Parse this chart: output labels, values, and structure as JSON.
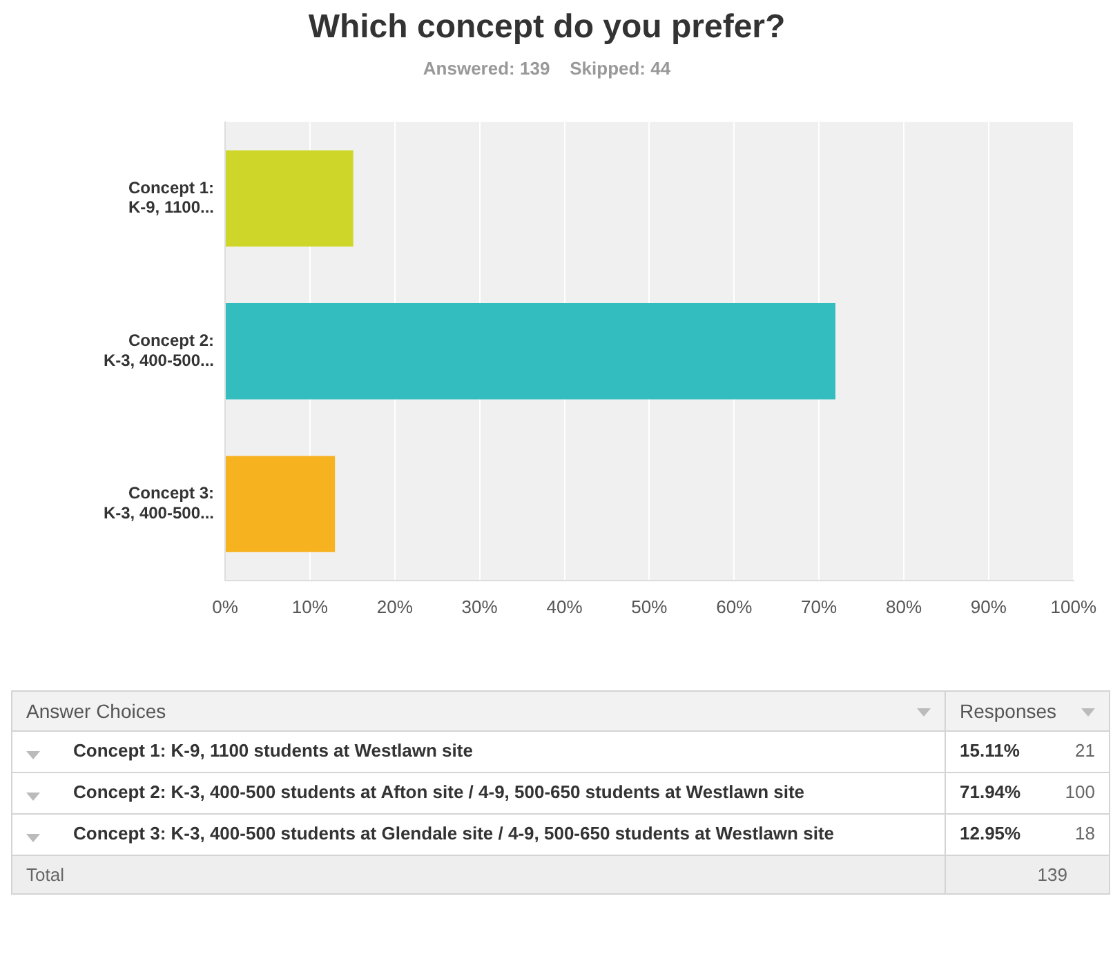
{
  "chart_data": {
    "type": "bar",
    "orientation": "horizontal",
    "title": "Which concept do you prefer?",
    "subtitle": "Answered: 139    Skipped: 44",
    "categories": [
      "Concept 1: K-9, 1100...",
      "Concept 2: K-3, 400-500...",
      "Concept 3: K-3, 400-500..."
    ],
    "values": [
      15.11,
      71.94,
      12.95
    ],
    "colors": [
      "#cfd62a",
      "#33bdbf",
      "#f7b21f"
    ],
    "xlim": [
      0,
      100
    ],
    "xticks": [
      {
        "value": 0,
        "label": "0%"
      },
      {
        "value": 10,
        "label": "10%"
      },
      {
        "value": 20,
        "label": "20%"
      },
      {
        "value": 30,
        "label": "30%"
      },
      {
        "value": 40,
        "label": "40%"
      },
      {
        "value": 50,
        "label": "50%"
      },
      {
        "value": 60,
        "label": "60%"
      },
      {
        "value": 70,
        "label": "70%"
      },
      {
        "value": 80,
        "label": "80%"
      },
      {
        "value": 90,
        "label": "90%"
      },
      {
        "value": 100,
        "label": "100%"
      }
    ],
    "grid": "x",
    "legend": false,
    "annotations": [
      "Answer Choices",
      "Responses",
      "Concept 1: K-9, 1100 students at Westlawn site",
      "15.11%",
      "21",
      "Concept 2: K-3, 400-500 students at Afton site / 4-9, 500-650 students at Westlawn site",
      "71.94%",
      "100",
      "Concept 3: K-3, 400-500 students at Glendale site / 4-9, 500-650 students at Westlawn site",
      "12.95%",
      "18",
      "Total",
      "139"
    ]
  }
}
